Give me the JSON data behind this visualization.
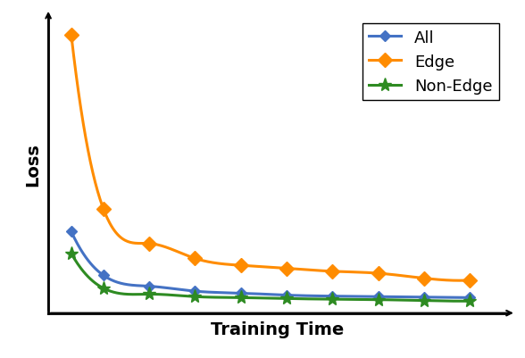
{
  "title": "",
  "xlabel": "Training Time",
  "ylabel": "Loss",
  "xlabel_fontsize": 14,
  "ylabel_fontsize": 14,
  "background_color": "#ffffff",
  "legend_labels": [
    "All",
    "Edge",
    "Non-Edge"
  ],
  "legend_colors": [
    "#4472C4",
    "#FF8C00",
    "#2E8B22"
  ],
  "line_colors": [
    "#4472C4",
    "#FF8C00",
    "#2E8B22"
  ],
  "all_x": [
    0.05,
    0.12,
    0.22,
    0.32,
    0.42,
    0.52,
    0.62,
    0.72,
    0.82,
    0.92
  ],
  "all_y": [
    0.82,
    0.38,
    0.27,
    0.22,
    0.2,
    0.18,
    0.17,
    0.165,
    0.16,
    0.155
  ],
  "edge_x": [
    0.05,
    0.12,
    0.22,
    0.32,
    0.42,
    0.52,
    0.62,
    0.72,
    0.82,
    0.92
  ],
  "edge_y": [
    2.8,
    1.05,
    0.7,
    0.55,
    0.48,
    0.45,
    0.42,
    0.4,
    0.35,
    0.33
  ],
  "nonedge_x": [
    0.05,
    0.12,
    0.22,
    0.32,
    0.42,
    0.52,
    0.62,
    0.72,
    0.82,
    0.92
  ],
  "nonedge_y": [
    0.6,
    0.25,
    0.19,
    0.165,
    0.155,
    0.145,
    0.14,
    0.135,
    0.125,
    0.12
  ],
  "marker_all": "D",
  "marker_edge": "D",
  "marker_nonedge": "*",
  "marker_size_all": 6,
  "marker_size_edge": 8,
  "marker_size_nonedge": 11,
  "linewidth": 2.2,
  "ylim": [
    0,
    3.0
  ],
  "xlim": [
    0.0,
    1.0
  ],
  "legend_fontsize": 13
}
